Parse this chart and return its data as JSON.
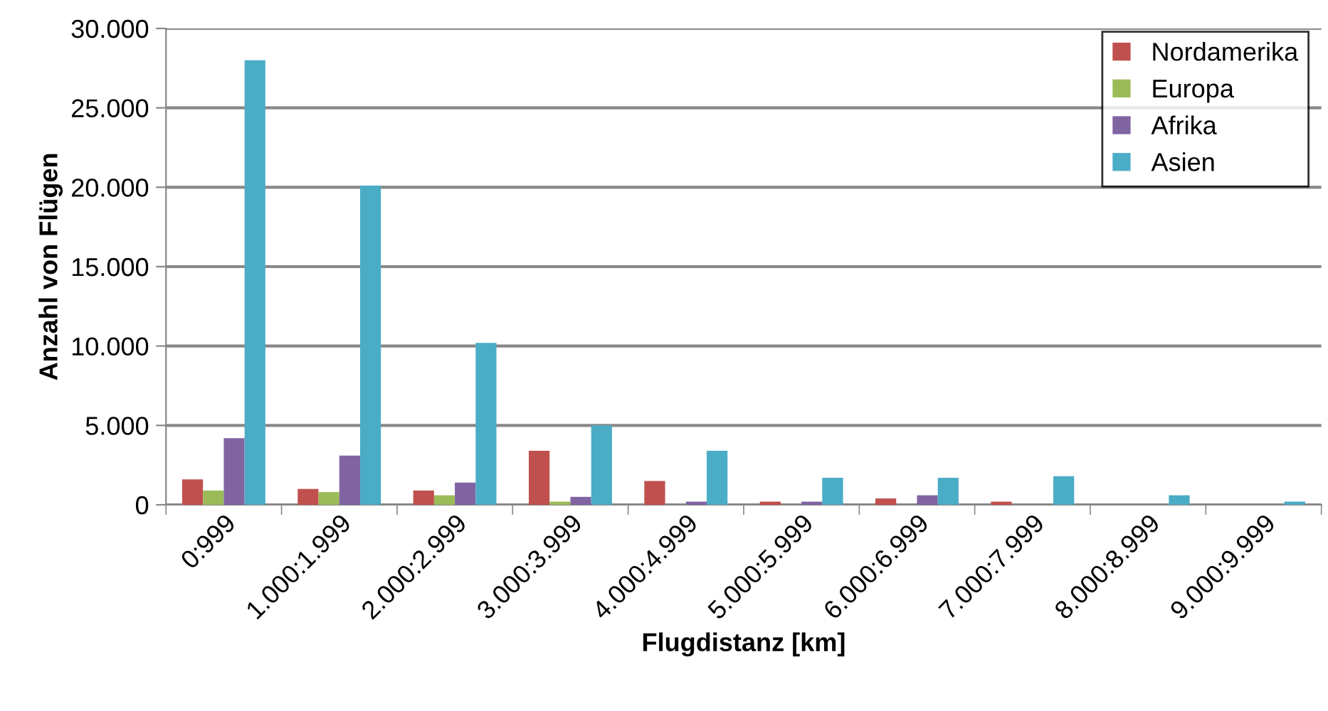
{
  "chart_data": {
    "type": "bar",
    "xlabel": "Flugdistanz [km]",
    "ylabel": "Anzahl von Flügen",
    "categories": [
      "0:999",
      "1.000:1.999",
      "2.000:2.999",
      "3.000:3.999",
      "4.000:4.999",
      "5.000:5.999",
      "6.000:6.999",
      "7.000:7.999",
      "8.000:8.999",
      "9.000:9.999"
    ],
    "series": [
      {
        "name": "Nordamerika",
        "color": "#c0504d",
        "values": [
          1600,
          1000,
          900,
          3400,
          1500,
          200,
          400,
          200,
          null,
          null
        ]
      },
      {
        "name": "Europa",
        "color": "#9bbb59",
        "values": [
          900,
          800,
          600,
          200,
          null,
          null,
          null,
          null,
          null,
          null
        ]
      },
      {
        "name": "Afrika",
        "color": "#8064a2",
        "values": [
          4200,
          3100,
          1400,
          500,
          200,
          200,
          600,
          null,
          null,
          null
        ]
      },
      {
        "name": "Asien",
        "color": "#4bacc6",
        "values": [
          28000,
          20100,
          10200,
          5000,
          3400,
          1700,
          1700,
          1800,
          600,
          200
        ]
      }
    ],
    "ylim": [
      0,
      30000
    ],
    "yticks": [
      {
        "value": 0,
        "label": "0"
      },
      {
        "value": 5000,
        "label": "5.000"
      },
      {
        "value": 10000,
        "label": "10.000"
      },
      {
        "value": 15000,
        "label": "15.000"
      },
      {
        "value": 20000,
        "label": "20.000"
      },
      {
        "value": 25000,
        "label": "25.000"
      },
      {
        "value": 30000,
        "label": "30.000"
      }
    ],
    "grid": "y",
    "legend": "top right"
  }
}
